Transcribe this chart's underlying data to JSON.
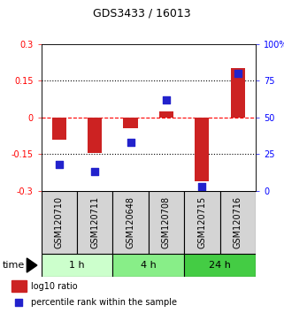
{
  "title": "GDS3433 / 16013",
  "samples": [
    "GSM120710",
    "GSM120711",
    "GSM120648",
    "GSM120708",
    "GSM120715",
    "GSM120716"
  ],
  "log10_ratio": [
    -0.09,
    -0.145,
    -0.045,
    0.025,
    -0.26,
    0.2
  ],
  "percentile_rank": [
    18,
    13,
    33,
    62,
    3,
    80
  ],
  "time_groups": [
    {
      "label": "1 h",
      "start": 0,
      "end": 2,
      "color": "#ccffcc"
    },
    {
      "label": "4 h",
      "start": 2,
      "end": 4,
      "color": "#88ee88"
    },
    {
      "label": "24 h",
      "start": 4,
      "end": 6,
      "color": "#44cc44"
    }
  ],
  "ylim_left": [
    -0.3,
    0.3
  ],
  "ylim_right": [
    0,
    100
  ],
  "yticks_left": [
    -0.3,
    -0.15,
    0,
    0.15,
    0.3
  ],
  "yticks_right": [
    0,
    25,
    50,
    75,
    100
  ],
  "ytick_labels_left": [
    "-0.3",
    "-0.15",
    "0",
    "0.15",
    "0.3"
  ],
  "ytick_labels_right": [
    "0",
    "25",
    "50",
    "75",
    "100%"
  ],
  "bar_color": "#cc2222",
  "dot_color": "#2222cc",
  "bar_width": 0.4,
  "dot_size": 40,
  "sample_box_color": "#d4d4d4",
  "title_fontsize": 9,
  "tick_fontsize": 7,
  "label_fontsize": 7,
  "time_fontsize": 8,
  "legend_fontsize": 7
}
